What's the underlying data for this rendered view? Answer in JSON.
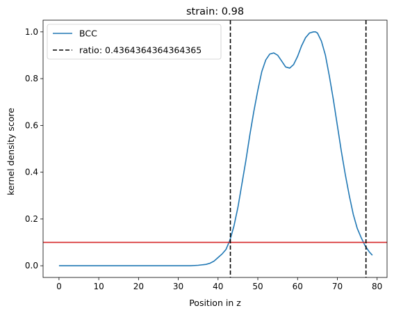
{
  "chart_data": {
    "type": "line",
    "title": "strain: 0.98",
    "xlabel": "Position in z",
    "ylabel": "kernel density score",
    "xlim": [
      -4,
      82.5
    ],
    "ylim": [
      -0.05,
      1.05
    ],
    "xticks": [
      0,
      10,
      20,
      30,
      40,
      50,
      60,
      70,
      80
    ],
    "yticks": [
      0.0,
      0.2,
      0.4,
      0.6,
      0.8,
      1.0
    ],
    "xtick_labels": [
      "0",
      "10",
      "20",
      "30",
      "40",
      "50",
      "60",
      "70",
      "80"
    ],
    "ytick_labels": [
      "0.0",
      "0.2",
      "0.4",
      "0.6",
      "0.8",
      "1.0"
    ],
    "grid": false,
    "legend_position": "upper left",
    "series": [
      {
        "name": "BCC",
        "color": "#1f77b4",
        "x": [
          0,
          5,
          10,
          15,
          20,
          25,
          30,
          33,
          35,
          37,
          38,
          39,
          40,
          41,
          42,
          43,
          44,
          45,
          46,
          47,
          48,
          49,
          50,
          51,
          52,
          53,
          54,
          55,
          56,
          57,
          58,
          59,
          60,
          61,
          62,
          63,
          64,
          64.5,
          65,
          66,
          67,
          68,
          69,
          70,
          71,
          72,
          73,
          74,
          75,
          76,
          77,
          78,
          78.8
        ],
        "y": [
          0.0,
          0.0,
          0.0,
          0.0,
          0.0,
          0.0,
          0.0,
          0.0,
          0.002,
          0.006,
          0.011,
          0.02,
          0.035,
          0.05,
          0.07,
          0.11,
          0.17,
          0.25,
          0.35,
          0.45,
          0.56,
          0.66,
          0.75,
          0.83,
          0.88,
          0.905,
          0.91,
          0.9,
          0.875,
          0.85,
          0.845,
          0.86,
          0.895,
          0.94,
          0.975,
          0.995,
          1.0,
          1.0,
          0.995,
          0.96,
          0.9,
          0.81,
          0.71,
          0.6,
          0.49,
          0.39,
          0.3,
          0.22,
          0.16,
          0.12,
          0.085,
          0.06,
          0.045
        ]
      }
    ],
    "vlines": [
      {
        "x": 43.1,
        "color": "#000000",
        "style": "dashed",
        "label": "ratio: 0.4364364364364365"
      },
      {
        "x": 77.2,
        "color": "#000000",
        "style": "dashed"
      }
    ],
    "hlines": [
      {
        "y": 0.1,
        "color": "#d62728",
        "style": "solid"
      }
    ],
    "legend": [
      {
        "label": "BCC",
        "style": "solid",
        "color": "#1f77b4"
      },
      {
        "label": "ratio: 0.4364364364364365",
        "style": "dashed",
        "color": "#000000"
      }
    ]
  }
}
